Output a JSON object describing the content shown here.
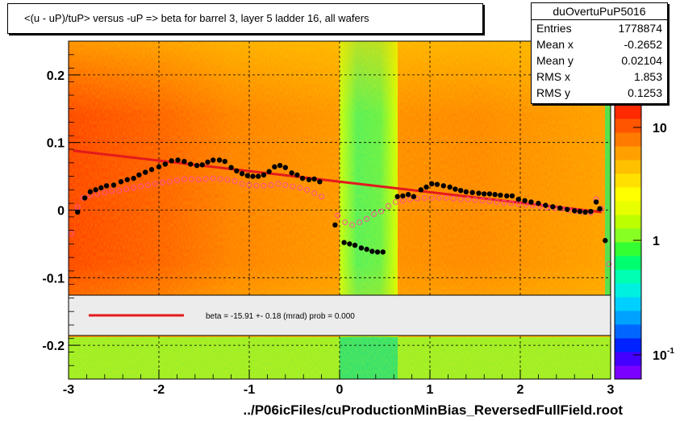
{
  "title": "<(u - uP)/tuP>  versus  -uP => beta for barrel 3, layer 5 ladder 16, all wafers",
  "stats": {
    "name": "duOvertuPuP5016",
    "rows": [
      {
        "label": "Entries",
        "value": "1778874"
      },
      {
        "label": "Mean x",
        "value": "-0.2652"
      },
      {
        "label": "Mean y",
        "value": "0.02104"
      },
      {
        "label": "RMS x",
        "value": "1.853"
      },
      {
        "label": "RMS y",
        "value": "0.1253"
      }
    ]
  },
  "legend": {
    "text": "beta =  -15.91 +-  0.18 (mrad) prob = 0.000",
    "line_color": "#e31a1c"
  },
  "colorbar": {
    "labels": [
      "10",
      "1",
      "10"
    ],
    "exponent": "-1",
    "colors": [
      "#7a00ff",
      "#4400ff",
      "#0022ff",
      "#0066ff",
      "#00a2ff",
      "#00d0ff",
      "#00f0e0",
      "#00ffb0",
      "#00ff70",
      "#33ff33",
      "#88ff22",
      "#bbff00",
      "#e8ff00",
      "#ffff00",
      "#ffe000",
      "#ffc000",
      "#ffa000",
      "#ff7a00",
      "#ff5500",
      "#ff2a00"
    ]
  },
  "chart_data": {
    "type": "heatmap",
    "xlabel": "../P06icFiles/cuProductionMinBias_ReversedFullField.root",
    "ylabel": "",
    "xlim": [
      -3,
      3
    ],
    "ylim": [
      -0.25,
      0.25
    ],
    "x_ticks": [
      "-3",
      "-2",
      "-1",
      "0",
      "1",
      "2",
      "3"
    ],
    "y_ticks": [
      "-0.2",
      "-0.1",
      "0",
      "0.1",
      "0.2"
    ],
    "grid": true,
    "colorbar_scale": "log",
    "fit_line": {
      "x": [
        -2.95,
        2.9
      ],
      "y": [
        0.088,
        -0.003
      ],
      "color": "#e31a1c"
    },
    "series": [
      {
        "marker": "filled-circle",
        "color": "#000000",
        "points": [
          [
            -2.9,
            -0.003
          ],
          [
            -2.82,
            0.018
          ],
          [
            -2.76,
            0.027
          ],
          [
            -2.7,
            0.03
          ],
          [
            -2.64,
            0.033
          ],
          [
            -2.58,
            0.036
          ],
          [
            -2.5,
            0.037
          ],
          [
            -2.42,
            0.042
          ],
          [
            -2.35,
            0.045
          ],
          [
            -2.28,
            0.047
          ],
          [
            -2.22,
            0.052
          ],
          [
            -2.15,
            0.056
          ],
          [
            -2.08,
            0.06
          ],
          [
            -2.0,
            0.064
          ],
          [
            -1.93,
            0.068
          ],
          [
            -1.86,
            0.073
          ],
          [
            -1.79,
            0.074
          ],
          [
            -1.72,
            0.072
          ],
          [
            -1.65,
            0.068
          ],
          [
            -1.58,
            0.066
          ],
          [
            -1.52,
            0.067
          ],
          [
            -1.46,
            0.071
          ],
          [
            -1.4,
            0.074
          ],
          [
            -1.33,
            0.074
          ],
          [
            -1.27,
            0.072
          ],
          [
            -1.2,
            0.063
          ],
          [
            -1.14,
            0.058
          ],
          [
            -1.08,
            0.054
          ],
          [
            -1.02,
            0.051
          ],
          [
            -0.96,
            0.05
          ],
          [
            -0.9,
            0.05
          ],
          [
            -0.84,
            0.052
          ],
          [
            -0.78,
            0.057
          ],
          [
            -0.72,
            0.064
          ],
          [
            -0.66,
            0.066
          ],
          [
            -0.6,
            0.063
          ],
          [
            -0.53,
            0.055
          ],
          [
            -0.47,
            0.052
          ],
          [
            -0.41,
            0.047
          ],
          [
            -0.34,
            0.045
          ],
          [
            -0.28,
            0.046
          ],
          [
            -0.22,
            0.042
          ],
          [
            -0.05,
            -0.022
          ],
          [
            0.05,
            -0.048
          ],
          [
            0.11,
            -0.05
          ],
          [
            0.17,
            -0.052
          ],
          [
            0.24,
            -0.056
          ],
          [
            0.3,
            -0.058
          ],
          [
            0.36,
            -0.061
          ],
          [
            0.42,
            -0.062
          ],
          [
            0.48,
            -0.062
          ],
          [
            0.64,
            0.02
          ],
          [
            0.7,
            0.021
          ],
          [
            0.76,
            0.023
          ],
          [
            0.82,
            0.02
          ],
          [
            0.9,
            0.03
          ],
          [
            0.96,
            0.034
          ],
          [
            1.02,
            0.039
          ],
          [
            1.08,
            0.038
          ],
          [
            1.15,
            0.036
          ],
          [
            1.22,
            0.034
          ],
          [
            1.28,
            0.031
          ],
          [
            1.34,
            0.029
          ],
          [
            1.4,
            0.027
          ],
          [
            1.47,
            0.026
          ],
          [
            1.54,
            0.025
          ],
          [
            1.6,
            0.024
          ],
          [
            1.66,
            0.024
          ],
          [
            1.72,
            0.023
          ],
          [
            1.78,
            0.022
          ],
          [
            1.85,
            0.021
          ],
          [
            1.91,
            0.021
          ],
          [
            1.98,
            0.016
          ],
          [
            2.05,
            0.014
          ],
          [
            2.12,
            0.012
          ],
          [
            2.2,
            0.01
          ],
          [
            2.28,
            0.007
          ],
          [
            2.36,
            0.005
          ],
          [
            2.44,
            0.003
          ],
          [
            2.52,
            0.001
          ],
          [
            2.6,
            -0.001
          ],
          [
            2.66,
            -0.002
          ],
          [
            2.72,
            -0.003
          ],
          [
            2.78,
            -0.002
          ],
          [
            2.84,
            0.012
          ],
          [
            2.88,
            0.002
          ],
          [
            2.94,
            -0.045
          ]
        ]
      },
      {
        "marker": "open-circle",
        "color": "#ff4f9a",
        "points": [
          [
            -2.97,
            -0.035
          ],
          [
            -2.9,
            0.004
          ],
          [
            -2.84,
            0.018
          ],
          [
            -2.76,
            0.022
          ],
          [
            -2.68,
            0.024
          ],
          [
            -2.6,
            0.026
          ],
          [
            -2.52,
            0.028
          ],
          [
            -2.44,
            0.029
          ],
          [
            -2.36,
            0.031
          ],
          [
            -2.28,
            0.033
          ],
          [
            -2.2,
            0.035
          ],
          [
            -2.12,
            0.037
          ],
          [
            -2.04,
            0.039
          ],
          [
            -1.96,
            0.041
          ],
          [
            -1.88,
            0.042
          ],
          [
            -1.8,
            0.044
          ],
          [
            -1.72,
            0.046
          ],
          [
            -1.64,
            0.046
          ],
          [
            -1.56,
            0.045
          ],
          [
            -1.48,
            0.046
          ],
          [
            -1.4,
            0.047
          ],
          [
            -1.32,
            0.046
          ],
          [
            -1.24,
            0.045
          ],
          [
            -1.16,
            0.043
          ],
          [
            -1.08,
            0.039
          ],
          [
            -1.0,
            0.037
          ],
          [
            -0.92,
            0.036
          ],
          [
            -0.84,
            0.036
          ],
          [
            -0.76,
            0.037
          ],
          [
            -0.68,
            0.039
          ],
          [
            -0.6,
            0.037
          ],
          [
            -0.52,
            0.035
          ],
          [
            -0.44,
            0.033
          ],
          [
            -0.36,
            0.03
          ],
          [
            -0.28,
            0.025
          ],
          [
            -0.2,
            0.02
          ],
          [
            -0.02,
            -0.008
          ],
          [
            0.06,
            -0.018
          ],
          [
            0.14,
            -0.022
          ],
          [
            0.22,
            -0.018
          ],
          [
            0.3,
            -0.013
          ],
          [
            0.38,
            -0.006
          ],
          [
            0.46,
            -0.002
          ],
          [
            0.54,
            0.006
          ],
          [
            0.62,
            0.012
          ],
          [
            0.7,
            0.014
          ],
          [
            0.78,
            0.016
          ],
          [
            0.86,
            0.017
          ],
          [
            0.94,
            0.018
          ],
          [
            1.02,
            0.018
          ],
          [
            1.1,
            0.018
          ],
          [
            1.18,
            0.018
          ],
          [
            1.26,
            0.017
          ],
          [
            1.34,
            0.016
          ],
          [
            1.42,
            0.016
          ],
          [
            1.5,
            0.015
          ],
          [
            1.58,
            0.014
          ],
          [
            1.66,
            0.013
          ],
          [
            1.74,
            0.012
          ],
          [
            1.82,
            0.011
          ],
          [
            1.9,
            0.01
          ],
          [
            1.98,
            0.009
          ],
          [
            2.06,
            0.008
          ],
          [
            2.14,
            0.007
          ],
          [
            2.22,
            0.006
          ],
          [
            2.3,
            0.004
          ],
          [
            2.38,
            0.003
          ],
          [
            2.46,
            0.002
          ],
          [
            2.54,
            0.0
          ],
          [
            2.62,
            -0.002
          ],
          [
            2.7,
            -0.003
          ],
          [
            2.78,
            -0.004
          ],
          [
            2.84,
            0.016
          ],
          [
            2.9,
            0.002
          ],
          [
            2.98,
            -0.08
          ]
        ]
      }
    ]
  }
}
